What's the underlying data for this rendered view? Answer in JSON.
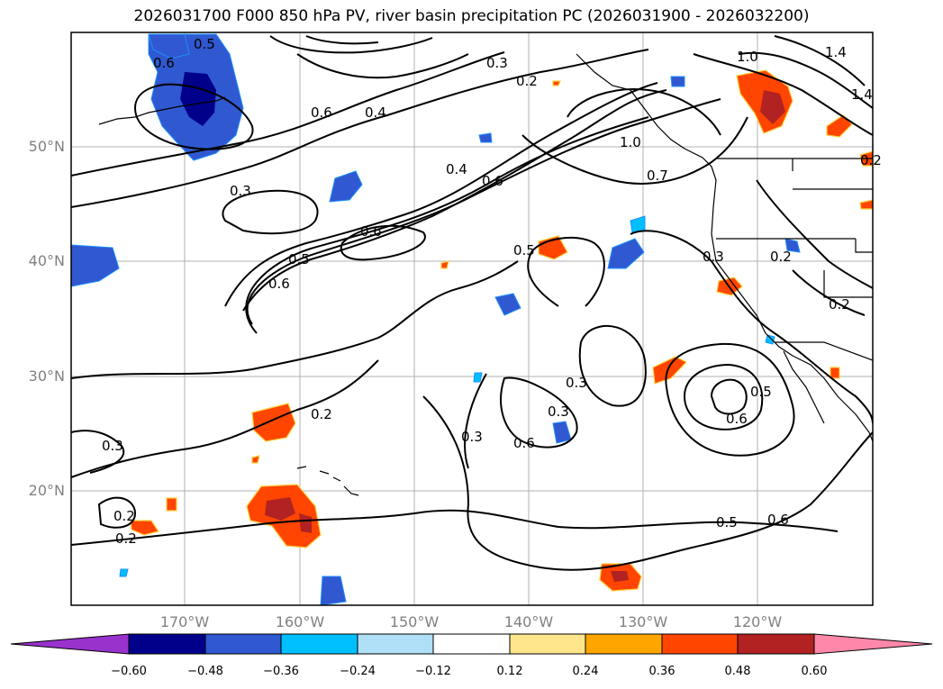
{
  "title": "2026031700 F000 850 hPa PV, river basin precipitation PC (2026031900 - 2026032200)",
  "latitude_labels": [
    "50°N",
    "40°N",
    "30°N",
    "20°N"
  ],
  "longitude_labels": [
    "170°W",
    "160°W",
    "150°W",
    "140°W",
    "130°W",
    "120°W"
  ],
  "colorbar": {
    "ticks": [
      "−0.60",
      "−0.48",
      "−0.36",
      "−0.24",
      "−0.12",
      "0.12",
      "0.24",
      "0.36",
      "0.48",
      "0.60"
    ],
    "colors": [
      "#9932cc",
      "#00008b",
      "#3058d0",
      "#00bfff",
      "#b0e0f8",
      "#ffffff",
      "#ffe68c",
      "#ffa500",
      "#ff4500",
      "#b22222",
      "#ff88aa"
    ]
  },
  "contour_labels": [
    "0.5",
    "0.6",
    "0.6",
    "0.4",
    "0.3",
    "0.2",
    "1.0",
    "1.0",
    "1.4",
    "1.4",
    "0.7",
    "0.4",
    "0.6",
    "0.3",
    "0.6",
    "0.5",
    "0.6",
    "0.5",
    "0.3",
    "0.2",
    "0.2",
    "0.2",
    "0.3",
    "0.3",
    "0.6",
    "0.3",
    "0.6",
    "0.5",
    "0.5",
    "0.6",
    "0.3",
    "0.2",
    "0.2",
    "0.2"
  ]
}
